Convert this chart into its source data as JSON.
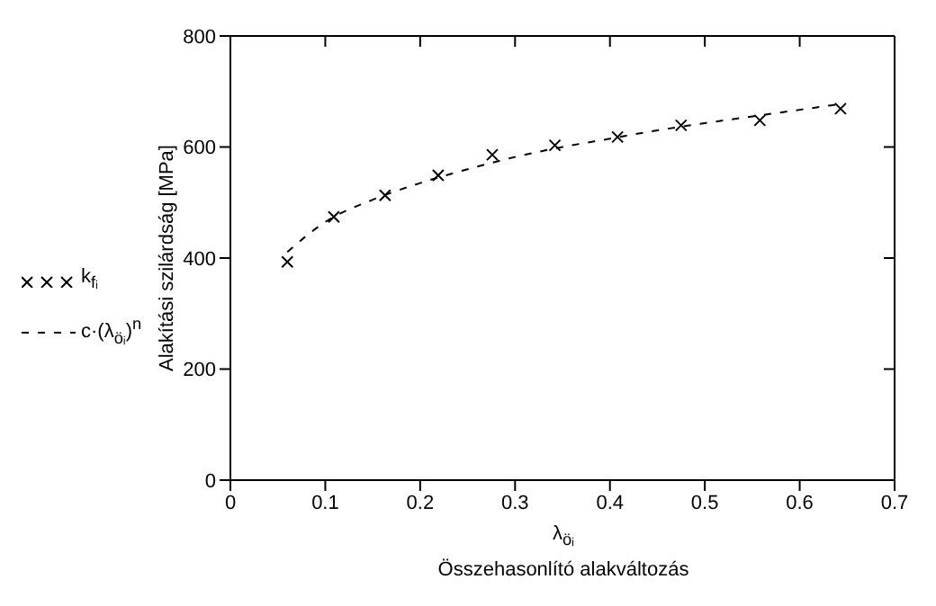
{
  "chart_data": {
    "type": "scatter",
    "xlabel": "λ$_{öᵢ}$\nÖsszehasonlító alakváltozás",
    "ylabel": "Alakítási szilárdság [MPa]",
    "xlim": [
      0,
      0.7
    ],
    "xticks": [
      0,
      0.1,
      0.2,
      0.3,
      0.4,
      0.5,
      0.6,
      0.7
    ],
    "ylim": [
      0,
      800
    ],
    "yticks": [
      0,
      200,
      400,
      600,
      800
    ],
    "grid": false,
    "legend": "left",
    "series": [
      {
        "name": "k$_{fᵢ}$",
        "type": "scatter",
        "marker": "cross",
        "color": "#000000",
        "x": [
          0.06,
          0.109,
          0.163,
          0.219,
          0.276,
          0.342,
          0.408,
          0.475,
          0.558,
          0.643
        ],
        "values": [
          393,
          474,
          513,
          549,
          586,
          603,
          618,
          639,
          648,
          669
        ]
      },
      {
        "name": "c·(λ$_{öᵢ}$)$^{n}$",
        "type": "line",
        "marker": "none",
        "line_style": "dashed",
        "color": "#000000",
        "x": [
          0.06,
          0.1,
          0.15,
          0.2,
          0.25,
          0.3,
          0.35,
          0.4,
          0.45,
          0.5,
          0.55,
          0.6,
          0.645
        ],
        "values": [
          411,
          465,
          505,
          535,
          560,
          582,
          600,
          615,
          630,
          643,
          655,
          667,
          678
        ]
      }
    ]
  }
}
